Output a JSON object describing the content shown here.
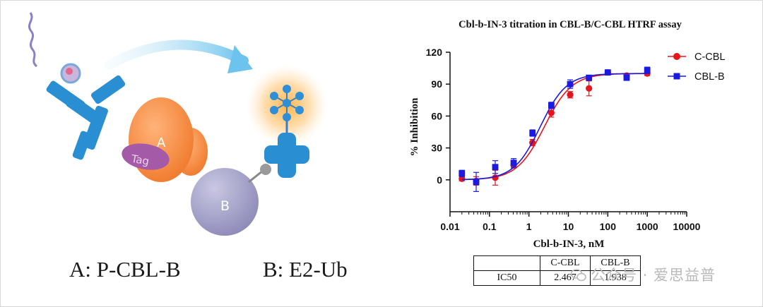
{
  "schematic": {
    "label_a": "A: P-CBL-B",
    "label_b": "B: E2-Ub",
    "protein_a_text": "A",
    "protein_b_text": "B",
    "tag_text": "Tag"
  },
  "chart_data": {
    "type": "scatter",
    "title": "Cbl-b-IN-3 titration in CBL-B/C-CBL HTRF assay",
    "xlabel": "Cbl-b-IN-3, nM",
    "ylabel": "% Inhibition",
    "xscale": "log",
    "xlim": [
      0.01,
      10000
    ],
    "ylim": [
      -30,
      120
    ],
    "xticks": [
      "0.01",
      "0.1",
      "1",
      "10",
      "100",
      "1000",
      "10000"
    ],
    "yticks": [
      "0",
      "30",
      "60",
      "90",
      "120"
    ],
    "legend_position": "top-right",
    "grid": false,
    "series": [
      {
        "name": "C-CBL",
        "color": "#e8141c",
        "marker": "circle",
        "x": [
          0.02,
          0.046,
          0.14,
          0.41,
          1.23,
          3.7,
          11.1,
          33.3,
          100,
          300,
          1000
        ],
        "y": [
          1,
          -1,
          2,
          14,
          35,
          63,
          80,
          86,
          101,
          98,
          100
        ],
        "err": [
          2,
          4,
          7,
          3,
          3,
          4,
          3,
          7,
          2,
          2,
          2
        ],
        "fit": {
          "bottom": 0,
          "top": 100,
          "ic50": 2.467,
          "hill": 1.25
        }
      },
      {
        "name": "CBL-B",
        "color": "#1a1ae0",
        "marker": "square",
        "x": [
          0.02,
          0.046,
          0.14,
          0.41,
          1.23,
          3.7,
          11.1,
          33.3,
          100,
          300,
          1000
        ],
        "y": [
          6,
          -2,
          12,
          16,
          44,
          70,
          90,
          96,
          101,
          96,
          103
        ],
        "err": [
          3,
          9,
          6,
          4,
          3,
          3,
          4,
          2,
          2,
          2,
          3
        ],
        "fit": {
          "bottom": 0,
          "top": 100,
          "ic50": 1.938,
          "hill": 1.3
        }
      }
    ]
  },
  "ic50_table": {
    "headers": [
      "",
      "C-CBL",
      "CBL-B"
    ],
    "row_label": "IC50",
    "values": [
      "2.467",
      "1.938"
    ]
  },
  "watermark": {
    "text": "公众号 · 爱思益普"
  }
}
